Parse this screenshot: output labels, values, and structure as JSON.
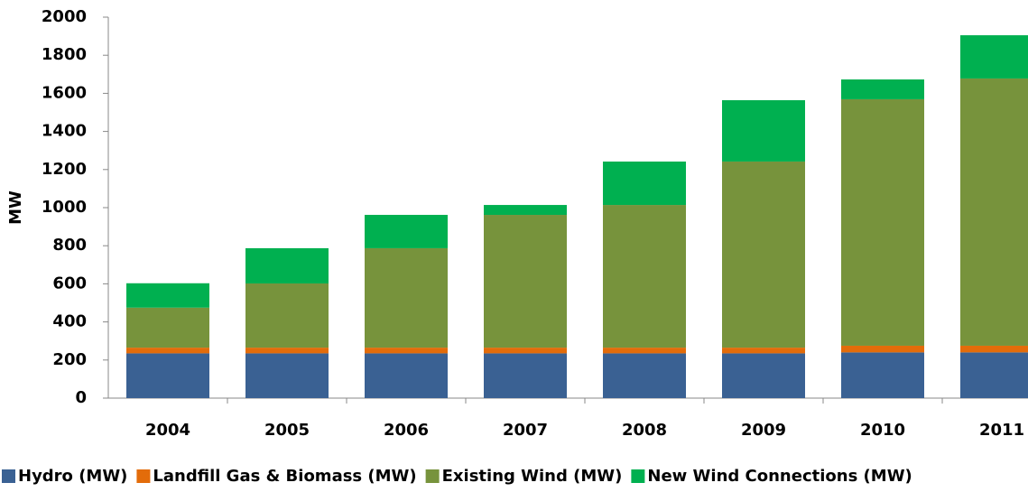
{
  "chart_data": {
    "type": "stacked_bar",
    "y_label": "MW",
    "categories": [
      "2004",
      "2005",
      "2006",
      "2007",
      "2008",
      "2009",
      "2010",
      "2011"
    ],
    "series": [
      {
        "name": "Hydro (MW)",
        "color": "#3a6193",
        "values": [
          235,
          235,
          235,
          235,
          235,
          235,
          240,
          240
        ]
      },
      {
        "name": "Landfill Gas & Biomass (MW)",
        "color": "#e36c0a",
        "values": [
          30,
          30,
          30,
          30,
          30,
          30,
          35,
          35
        ]
      },
      {
        "name": "Existing Wind (MW)",
        "color": "#77933c",
        "values": [
          210,
          337,
          522,
          697,
          749,
          977,
          1294,
          1403
        ]
      },
      {
        "name": "New Wind Connections (MW)",
        "color": "#00b050",
        "values": [
          128,
          185,
          175,
          52,
          228,
          322,
          104,
          227
        ]
      }
    ],
    "ylim": [
      0,
      2000
    ],
    "yticks": [
      0,
      200,
      400,
      600,
      800,
      1000,
      1200,
      1400,
      1600,
      1800,
      2000
    ]
  }
}
